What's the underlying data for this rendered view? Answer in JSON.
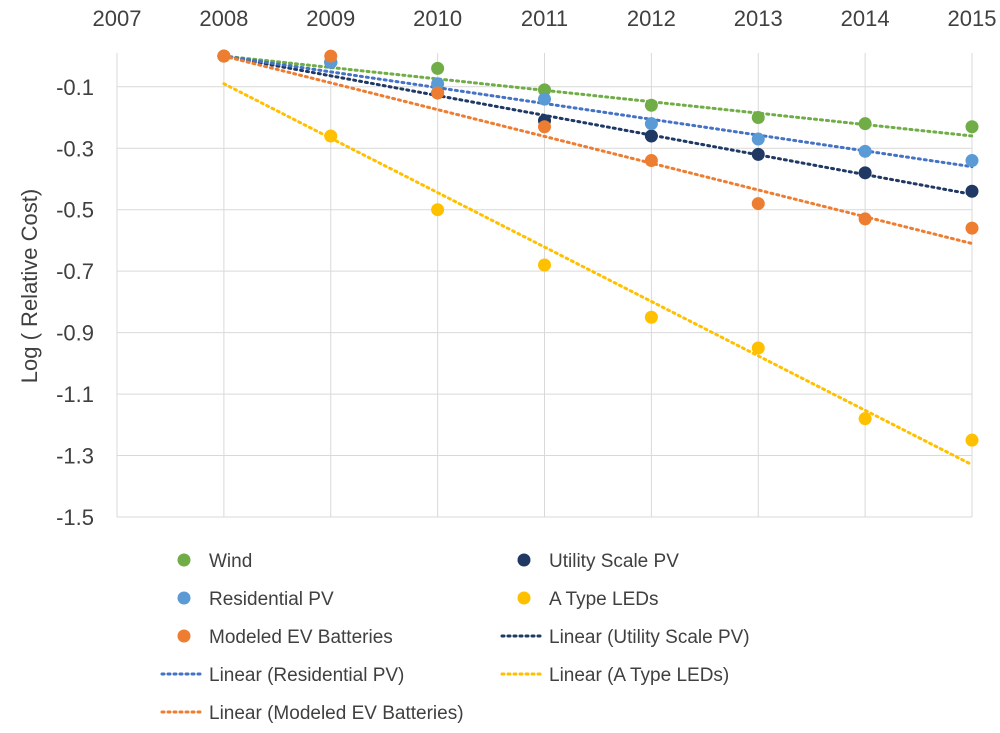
{
  "chart_data": {
    "type": "scatter",
    "title": "",
    "xlabel": "",
    "ylabel": "Log ( Relative Cost)",
    "x_ticks": [
      "2007",
      "2008",
      "2009",
      "2010",
      "2011",
      "2012",
      "2013",
      "2014",
      "2015"
    ],
    "y_ticks": [
      "-0.1",
      "-0.3",
      "-0.5",
      "-0.7",
      "-0.9",
      "-1.1",
      "-1.3",
      "-1.5"
    ],
    "xlim": [
      2007,
      2015
    ],
    "ylim": [
      -1.5,
      0.01
    ],
    "x_axis_position": "top",
    "grid": true,
    "legend_position": "bottom",
    "series": [
      {
        "name": "Wind",
        "color": "#70ad47",
        "x": [
          2008,
          2009,
          2010,
          2011,
          2012,
          2013,
          2014,
          2015
        ],
        "y": [
          0.0,
          -0.02,
          -0.04,
          -0.11,
          -0.16,
          -0.2,
          -0.22,
          -0.23
        ],
        "trendline": {
          "name": "",
          "x": [
            2008,
            2015
          ],
          "y": [
            0.0,
            -0.26
          ]
        }
      },
      {
        "name": "Utility Scale PV",
        "color": "#1f3864",
        "x": [
          2008,
          2009,
          2010,
          2011,
          2012,
          2013,
          2014,
          2015
        ],
        "y": [
          0.0,
          -0.02,
          -0.12,
          -0.21,
          -0.26,
          -0.32,
          -0.38,
          -0.44
        ],
        "trendline": {
          "name": "Linear (Utility Scale PV)",
          "x": [
            2008,
            2015
          ],
          "y": [
            0.0,
            -0.45
          ]
        }
      },
      {
        "name": "Residential PV",
        "color": "#5b9bd5",
        "x": [
          2008,
          2009,
          2010,
          2011,
          2012,
          2013,
          2014,
          2015
        ],
        "y": [
          0.0,
          -0.02,
          -0.09,
          -0.14,
          -0.22,
          -0.27,
          -0.31,
          -0.34
        ],
        "trendline": {
          "name": "Linear (Residential PV)",
          "x": [
            2008,
            2015
          ],
          "y": [
            0.0,
            -0.36
          ]
        }
      },
      {
        "name": "A Type LEDs",
        "color": "#ffc000",
        "x": [
          2008,
          2009,
          2010,
          2011,
          2012,
          2013,
          2014,
          2015
        ],
        "y": [
          0.0,
          -0.26,
          -0.5,
          -0.68,
          -0.85,
          -0.95,
          -1.18,
          -1.25
        ],
        "trendline": {
          "name": "Linear (A Type LEDs)",
          "x": [
            2008,
            2015
          ],
          "y": [
            -0.09,
            -1.33
          ]
        }
      },
      {
        "name": "Modeled EV Batteries",
        "color": "#ed7d31",
        "x": [
          2008,
          2009,
          2010,
          2011,
          2012,
          2013,
          2014,
          2015
        ],
        "y": [
          0.0,
          0.0,
          -0.12,
          -0.23,
          -0.34,
          -0.48,
          -0.53,
          -0.56
        ],
        "trendline": {
          "name": "Linear (Modeled EV Batteries)",
          "x": [
            2008,
            2015
          ],
          "y": [
            0.0,
            -0.61
          ]
        }
      }
    ],
    "legend_entries": [
      {
        "label": "Wind",
        "kind": "marker",
        "color": "#70ad47"
      },
      {
        "label": "Utility Scale PV",
        "kind": "marker",
        "color": "#1f3864"
      },
      {
        "label": "Residential PV",
        "kind": "marker",
        "color": "#5b9bd5"
      },
      {
        "label": "A Type LEDs",
        "kind": "marker",
        "color": "#ffc000"
      },
      {
        "label": "Modeled EV Batteries",
        "kind": "marker",
        "color": "#ed7d31"
      },
      {
        "label": "Linear (Utility Scale PV)",
        "kind": "dotted",
        "color": "#1f3864"
      },
      {
        "label": "Linear (Residential PV)",
        "kind": "dotted",
        "color": "#4472c4"
      },
      {
        "label": "Linear (A Type LEDs)",
        "kind": "dotted",
        "color": "#ffc000"
      },
      {
        "label": "Linear (Modeled EV Batteries)",
        "kind": "dotted",
        "color": "#ed7d31"
      }
    ]
  }
}
